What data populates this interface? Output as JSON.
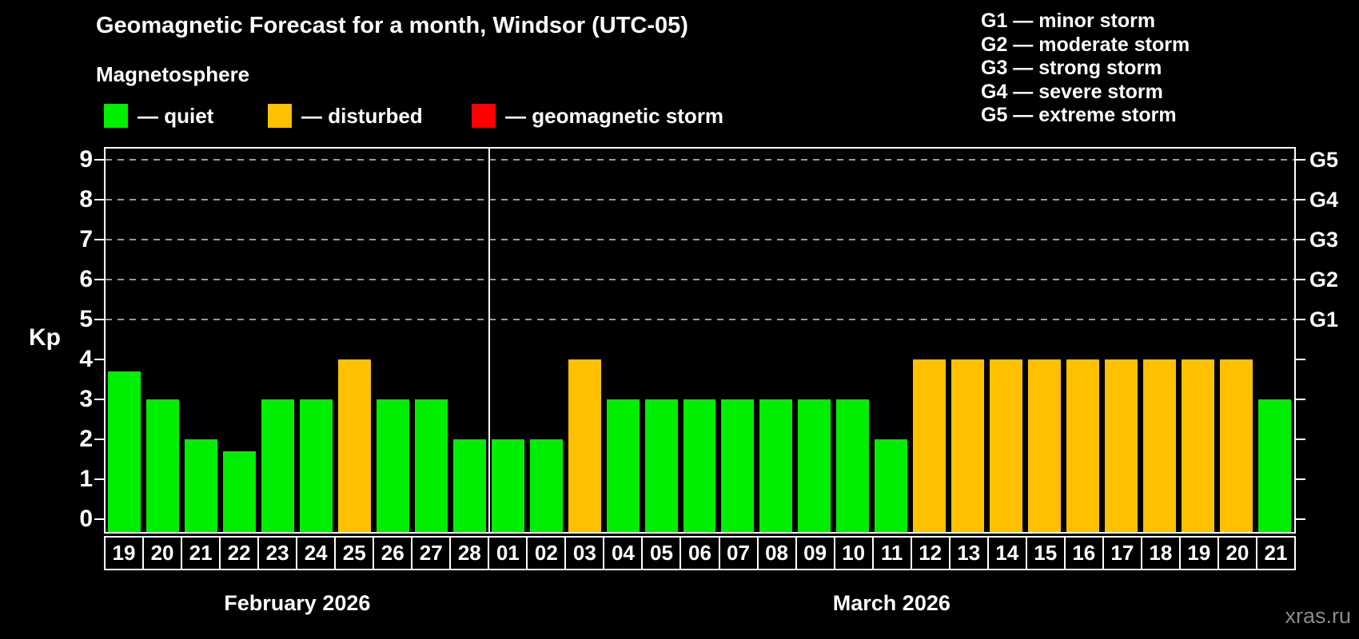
{
  "header": {
    "title": "Geomagnetic Forecast for a month, Windsor (UTC-05)",
    "subtitle": "Magnetosphere",
    "watermark": "xras.ru"
  },
  "legend": {
    "items": [
      {
        "name": "quiet",
        "label": "— quiet",
        "color": "#00ee00"
      },
      {
        "name": "disturbed",
        "label": "— disturbed",
        "color": "#ffc000"
      },
      {
        "name": "geomagnetic-storm",
        "label": "— geomagnetic storm",
        "color": "#ff0000"
      }
    ]
  },
  "storm_legend": {
    "items": [
      "G1 — minor storm",
      "G2 — moderate storm",
      "G3 — strong storm",
      "G4 — severe storm",
      "G5 — extreme storm"
    ]
  },
  "chart_data": {
    "type": "bar",
    "title": "Geomagnetic Forecast for a month, Windsor (UTC-05)",
    "ylabel": "Kp",
    "ylim": [
      0,
      9
    ],
    "yticks": [
      0,
      1,
      2,
      3,
      4,
      5,
      6,
      7,
      8,
      9
    ],
    "gridlines_at": [
      5,
      6,
      7,
      8,
      9
    ],
    "grid": true,
    "right_axis_labels": [
      {
        "value": 5,
        "label": "G1"
      },
      {
        "value": 6,
        "label": "G2"
      },
      {
        "value": 7,
        "label": "G3"
      },
      {
        "value": 8,
        "label": "G4"
      },
      {
        "value": 9,
        "label": "G5"
      }
    ],
    "months": [
      {
        "label": "February 2026",
        "days": 10
      },
      {
        "label": "March 2026",
        "days": 21
      }
    ],
    "categories": [
      "19",
      "20",
      "21",
      "22",
      "23",
      "24",
      "25",
      "26",
      "27",
      "28",
      "01",
      "02",
      "03",
      "04",
      "05",
      "06",
      "07",
      "08",
      "09",
      "10",
      "11",
      "12",
      "13",
      "14",
      "15",
      "16",
      "17",
      "18",
      "19",
      "20",
      "21"
    ],
    "values": [
      3.7,
      3,
      2,
      1.7,
      3,
      3,
      4,
      3,
      3,
      2,
      2,
      2,
      4,
      3,
      3,
      3,
      3,
      3,
      3,
      3,
      2,
      4,
      4,
      4,
      4,
      4,
      4,
      4,
      4,
      4,
      3
    ],
    "statuses": [
      "quiet",
      "quiet",
      "quiet",
      "quiet",
      "quiet",
      "quiet",
      "disturbed",
      "quiet",
      "quiet",
      "quiet",
      "quiet",
      "quiet",
      "disturbed",
      "quiet",
      "quiet",
      "quiet",
      "quiet",
      "quiet",
      "quiet",
      "quiet",
      "quiet",
      "disturbed",
      "disturbed",
      "disturbed",
      "disturbed",
      "disturbed",
      "disturbed",
      "disturbed",
      "disturbed",
      "disturbed",
      "quiet"
    ],
    "status_colors": {
      "quiet": "#00ee00",
      "disturbed": "#ffc000",
      "storm": "#ff0000"
    },
    "legend_position": "top"
  }
}
